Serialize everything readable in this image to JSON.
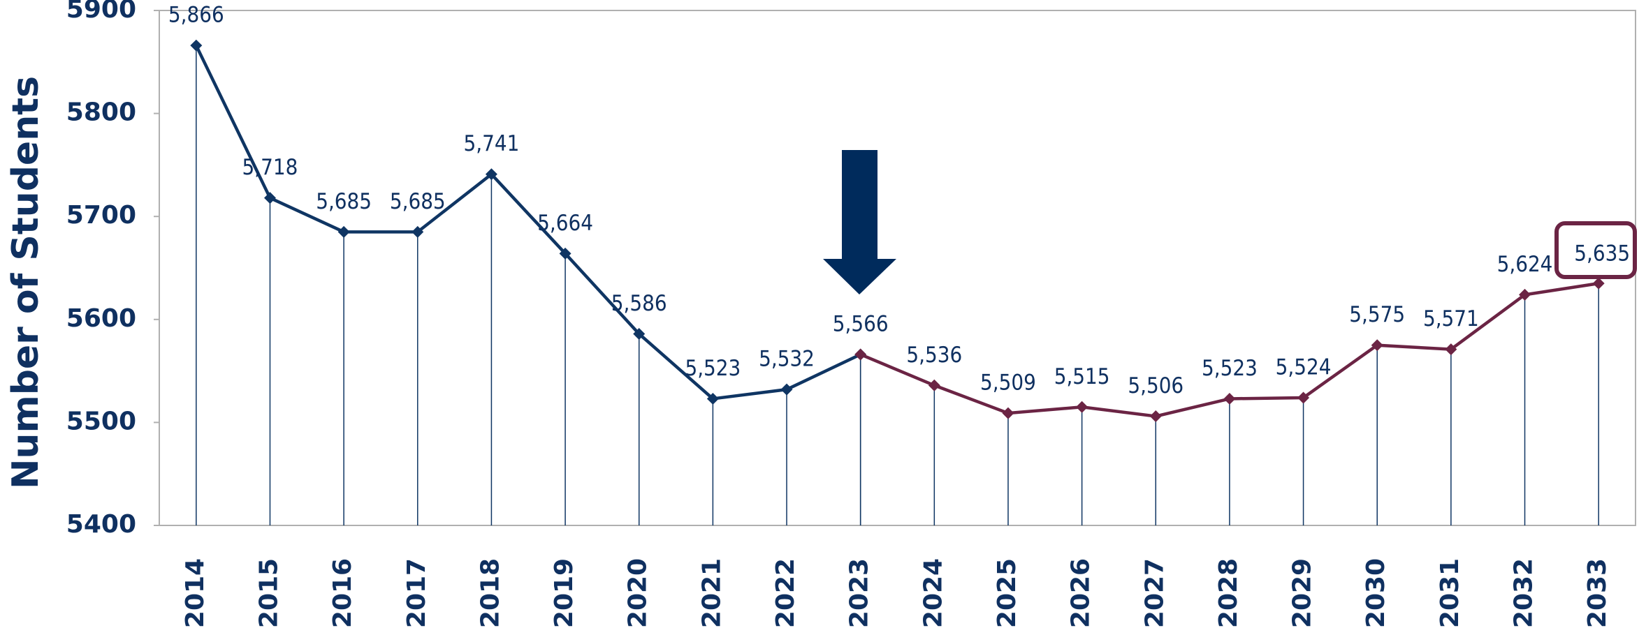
{
  "chart_data": {
    "type": "line",
    "y_label": "Number of Students",
    "categories": [
      "2014",
      "2015",
      "2016",
      "2017",
      "2018",
      "2019",
      "2020",
      "2021",
      "2022",
      "2023",
      "2024",
      "2025",
      "2026",
      "2027",
      "2028",
      "2029",
      "2030",
      "2031",
      "2032",
      "2033"
    ],
    "series": [
      {
        "color": "#0f3563",
        "values": [
          5866,
          5718,
          5685,
          5685,
          5741,
          5664,
          5586,
          5523,
          5532,
          5566,
          null,
          null,
          null,
          null,
          null,
          null,
          null,
          null,
          null,
          null
        ],
        "value_labels": [
          "5,866",
          "5,718",
          "5,685",
          "5,685",
          "5,741",
          "5,664",
          "5,586",
          "5,523",
          "5,532",
          "5,566",
          null,
          null,
          null,
          null,
          null,
          null,
          null,
          null,
          null,
          null
        ]
      },
      {
        "color": "#6b2444",
        "values": [
          null,
          null,
          null,
          null,
          null,
          null,
          null,
          null,
          null,
          5566,
          5536,
          5509,
          5515,
          5506,
          5523,
          5524,
          5575,
          5571,
          5624,
          5635
        ],
        "value_labels": [
          null,
          null,
          null,
          null,
          null,
          null,
          null,
          null,
          null,
          null,
          "5,536",
          "5,509",
          "5,515",
          "5,506",
          "5,523",
          "5,524",
          "5,575",
          "5,571",
          "5,624",
          "5,635"
        ]
      }
    ],
    "ylim": [
      5400,
      5900
    ],
    "yticks": [
      5400,
      5500,
      5600,
      5700,
      5800,
      5900
    ]
  }
}
